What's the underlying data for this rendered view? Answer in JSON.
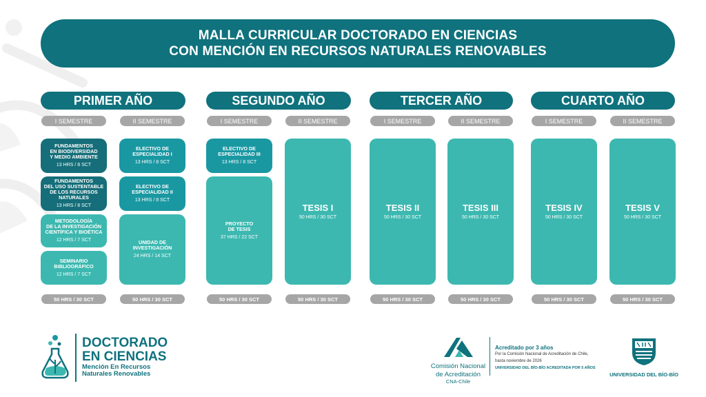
{
  "title": {
    "line1": "MALLA CURRICULAR DOCTORADO EN CIENCIAS",
    "line2": "CON MENCIÓN EN RECURSOS NATURALES RENOVABLES"
  },
  "years": [
    {
      "label": "PRIMER AÑO"
    },
    {
      "label": "SEGUNDO AÑO"
    },
    {
      "label": "TERCER AÑO"
    },
    {
      "label": "CUARTO AÑO"
    }
  ],
  "semesters": [
    {
      "label": "I SEMESTRE",
      "total": "50 HRS / 30 SCT"
    },
    {
      "label": "II SEMESTRE",
      "total": "50 HRS / 30 SCT"
    },
    {
      "label": "I SEMESTRE",
      "total": "50 HRS / 30 SCT"
    },
    {
      "label": "II SEMESTRE",
      "total": "50 HRS / 30 SCT"
    },
    {
      "label": "I SEMESTRE",
      "total": "50 HRS / 30 SCT"
    },
    {
      "label": "II SEMESTRE",
      "total": "50 HRS / 30 SCT"
    },
    {
      "label": "I SEMESTRE",
      "total": "50 HRS / 30 SCT"
    },
    {
      "label": "II SEMESTRE",
      "total": "50 HRS / 30 SCT"
    }
  ],
  "courses": [
    {
      "name": "FUNDAMENTOS\nEN BIODIVERSIDAD\nY MEDIO AMBIENTE",
      "hours": "13 HRS / 8 SCT"
    },
    {
      "name": "FUNDAMENTOS\nDEL USO SUSTENTABLE\nDE LOS RECURSOS\nNATURALES",
      "hours": "13 HRS / 8 SCT"
    },
    {
      "name": "METODOLOGÍA\nDE LA INVESTIGACIÓN\nCIENTÍFICA Y BIOÉTICA",
      "hours": "12 HRS / 7 SCT"
    },
    {
      "name": "SEMINARIO\nBIBLIOGRÁFICO",
      "hours": "12 HRS / 7 SCT"
    },
    {
      "name": "ELECTIVO DE\nESPECIALIDAD I",
      "hours": "13 HRS / 8 SCT"
    },
    {
      "name": "ELECTIVO DE\nESPECIALIDAD II",
      "hours": "13 HRS / 8 SCT"
    },
    {
      "name": "UNIDAD DE\nINVESTIGACIÓN",
      "hours": "24 HRS / 14 SCT"
    },
    {
      "name": "ELECTIVO DE\nESPECIALIDAD III",
      "hours": "13 HRS / 8 SCT"
    },
    {
      "name": "PROYECTO\nDE TESIS",
      "hours": "37 HRS / 22 SCT"
    },
    {
      "name": "TESIS I",
      "hours": "50 HRS / 30 SCT"
    },
    {
      "name": "TESIS II",
      "hours": "50 HRS / 30 SCT"
    },
    {
      "name": "TESIS III",
      "hours": "50 HRS / 30 SCT"
    },
    {
      "name": "TESIS IV",
      "hours": "50 HRS / 30 SCT"
    },
    {
      "name": "TESIS V",
      "hours": "50 HRS / 30 SCT"
    }
  ],
  "footer": {
    "program": {
      "line1": "DOCTORADO",
      "line2": "EN CIENCIAS",
      "sub1": "Mención En Recursos",
      "sub2": "Naturales Renovables"
    },
    "cna": {
      "line1": "Comisión Nacional",
      "line2": "de Acreditación",
      "line3": "CNA-Chile"
    },
    "accreditation": {
      "title": "Acreditado por 3 años",
      "line1": "Por la Comisión Nacional de Acreditación de Chile,",
      "line2": "hasta noviembre de 2026",
      "line3": "UNIVERSIDAD DEL BÍO-BÍO ACREDITADA POR 5 AÑOS"
    },
    "university": {
      "name": "UNIVERSIDAD DEL BÍO-BÍO"
    }
  },
  "colors": {
    "primary": "#0f727d",
    "dark": "#156e79",
    "mid": "#1a98a2",
    "light": "#3cb8b0",
    "gray": "#a6a6a6"
  }
}
